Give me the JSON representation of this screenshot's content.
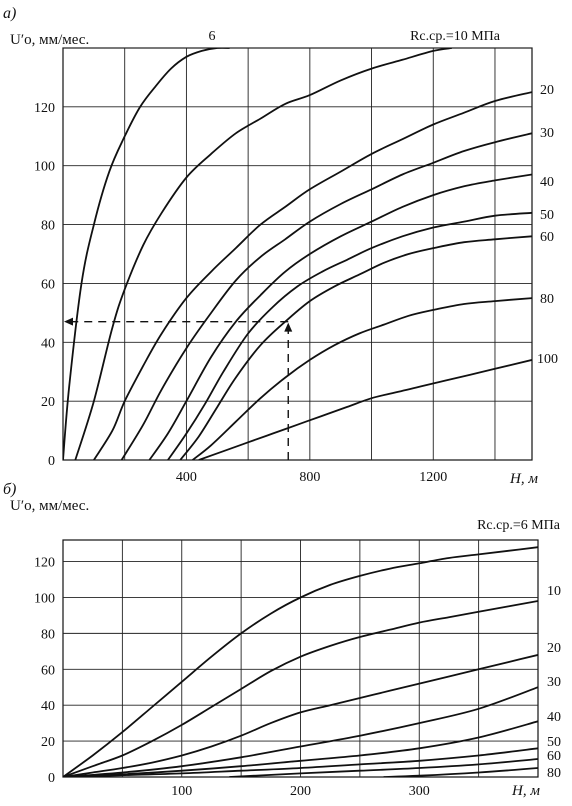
{
  "chart_data": [
    {
      "panel_label": "а)",
      "type": "line",
      "ylabel": "U′о, мм/мес.",
      "xlabel": "H, м",
      "param_label": "Rс.ср.=10 МПа",
      "xlim": [
        0,
        1520
      ],
      "ylim": [
        0,
        140
      ],
      "x_ticks": [
        "400",
        "800",
        "1200"
      ],
      "x_tick_values": [
        400,
        800,
        1200
      ],
      "y_ticks": [
        "0",
        "20",
        "40",
        "60",
        "80",
        "100",
        "120"
      ],
      "y_tick_values": [
        0,
        20,
        40,
        60,
        80,
        100,
        120
      ],
      "grid": true,
      "series": [
        {
          "name": "6",
          "x": [
            0,
            20,
            60,
            100,
            150,
            200,
            250,
            300,
            350,
            400,
            450,
            500,
            540
          ],
          "y": [
            0,
            25,
            60,
            80,
            98,
            110,
            120,
            127,
            133,
            137,
            139,
            140,
            140
          ]
        },
        {
          "name": "",
          "x": [
            40,
            100,
            160,
            200,
            260,
            320,
            400,
            480,
            560,
            640,
            720,
            800,
            900,
            1000,
            1100,
            1200,
            1260
          ],
          "y": [
            0,
            20,
            45,
            58,
            73,
            84,
            96,
            104,
            111,
            116,
            121,
            124,
            129,
            133,
            136,
            139,
            140
          ]
        },
        {
          "name": "20",
          "x": [
            100,
            160,
            200,
            260,
            320,
            400,
            480,
            560,
            640,
            720,
            800,
            900,
            1000,
            1100,
            1200,
            1300,
            1400,
            1520
          ],
          "y": [
            0,
            10,
            20,
            32,
            43,
            55,
            64,
            72,
            80,
            86,
            92,
            98,
            104,
            109,
            114,
            118,
            122,
            125
          ]
        },
        {
          "name": "30",
          "x": [
            190,
            260,
            320,
            400,
            480,
            560,
            640,
            720,
            800,
            900,
            1000,
            1100,
            1200,
            1300,
            1400,
            1520
          ],
          "y": [
            0,
            12,
            24,
            38,
            50,
            61,
            69,
            75,
            81,
            87,
            92,
            97,
            101,
            105,
            108,
            111
          ]
        },
        {
          "name": "40",
          "x": [
            280,
            340,
            400,
            480,
            560,
            640,
            720,
            800,
            900,
            1000,
            1100,
            1200,
            1300,
            1400,
            1520
          ],
          "y": [
            0,
            9,
            20,
            35,
            47,
            56,
            64,
            70,
            76,
            81,
            86,
            90,
            93,
            95,
            97
          ]
        },
        {
          "name": "50",
          "x": [
            340,
            400,
            460,
            520,
            600,
            680,
            760,
            840,
            920,
            1000,
            1100,
            1200,
            1300,
            1400,
            1520
          ],
          "y": [
            0,
            9,
            19,
            30,
            43,
            52,
            59,
            64,
            68,
            72,
            76,
            79,
            81,
            83,
            84
          ]
        },
        {
          "name": "60",
          "x": [
            380,
            440,
            500,
            560,
            640,
            720,
            800,
            880,
            960,
            1040,
            1120,
            1200,
            1300,
            1400,
            1520
          ],
          "y": [
            0,
            8,
            18,
            28,
            39,
            47,
            54,
            59,
            63,
            67,
            70,
            72,
            74,
            75,
            76
          ]
        },
        {
          "name": "80",
          "x": [
            420,
            480,
            560,
            640,
            720,
            800,
            880,
            960,
            1040,
            1120,
            1200,
            1300,
            1400,
            1520
          ],
          "y": [
            0,
            5,
            13,
            21,
            28,
            34,
            39,
            43,
            46,
            49,
            51,
            53,
            54,
            55
          ]
        },
        {
          "name": "100",
          "x": [
            440,
            520,
            600,
            680,
            760,
            840,
            920,
            1000,
            1080,
            1160,
            1240,
            1320,
            1400,
            1520
          ],
          "y": [
            0,
            3,
            6,
            9,
            12,
            15,
            18,
            21,
            23,
            25,
            27,
            29,
            31,
            34
          ]
        }
      ],
      "annotation": {
        "style": "dashed arrows",
        "point_x": 730,
        "point_y": 47,
        "arrow_from_x": 730,
        "arrow_from_y": 0,
        "arrow_to_x": 0,
        "arrow_to_y": 47
      }
    },
    {
      "panel_label": "б)",
      "type": "line",
      "ylabel": "U′о, мм/мес.",
      "xlabel": "H, м",
      "param_label": "Rс.ср.=6 МПа",
      "xlim": [
        0,
        400
      ],
      "ylim": [
        0,
        132
      ],
      "x_ticks": [
        "100",
        "200",
        "300"
      ],
      "x_tick_values": [
        100,
        200,
        300
      ],
      "y_ticks": [
        "0",
        "20",
        "40",
        "60",
        "80",
        "100",
        "120"
      ],
      "y_tick_values": [
        0,
        20,
        40,
        60,
        80,
        100,
        120
      ],
      "grid": true,
      "series": [
        {
          "name": "",
          "x": [
            0,
            25,
            50,
            75,
            100,
            125,
            150,
            175,
            200,
            225,
            250,
            275,
            300,
            325,
            350,
            375,
            400
          ],
          "y": [
            0,
            12,
            25,
            39,
            53,
            67,
            80,
            91,
            100,
            107,
            112,
            116,
            119,
            122,
            124,
            126,
            128
          ]
        },
        {
          "name": "10",
          "x": [
            0,
            25,
            50,
            75,
            100,
            125,
            150,
            175,
            200,
            225,
            250,
            275,
            300,
            325,
            350,
            375,
            400
          ],
          "y": [
            0,
            6,
            12,
            20,
            29,
            39,
            49,
            59,
            67,
            73,
            78,
            82,
            86,
            89,
            92,
            95,
            98
          ]
        },
        {
          "name": "20",
          "x": [
            0,
            25,
            50,
            75,
            100,
            125,
            150,
            175,
            200,
            225,
            250,
            275,
            300,
            325,
            350,
            375,
            400
          ],
          "y": [
            0,
            2.5,
            5,
            8,
            12,
            17,
            23,
            30,
            36,
            40,
            44,
            48,
            52,
            56,
            60,
            64,
            68
          ]
        },
        {
          "name": "30",
          "x": [
            0,
            50,
            100,
            150,
            200,
            250,
            300,
            350,
            400
          ],
          "y": [
            0,
            2.5,
            6,
            11,
            17,
            23,
            30,
            38,
            50
          ]
        },
        {
          "name": "40",
          "x": [
            0,
            50,
            100,
            150,
            200,
            250,
            300,
            350,
            400
          ],
          "y": [
            0,
            1.5,
            3.5,
            6,
            9,
            12,
            16,
            22,
            31
          ]
        },
        {
          "name": "50",
          "x": [
            0,
            50,
            100,
            150,
            200,
            250,
            300,
            350,
            400
          ],
          "y": [
            0,
            1,
            2,
            3.5,
            5,
            7,
            9,
            12,
            16
          ]
        },
        {
          "name": "60",
          "x": [
            140,
            200,
            250,
            300,
            350,
            400
          ],
          "y": [
            0,
            2,
            3.5,
            5,
            7,
            10
          ]
        },
        {
          "name": "80",
          "x": [
            270,
            300,
            350,
            400
          ],
          "y": [
            0,
            0.7,
            2.5,
            5
          ]
        }
      ]
    }
  ]
}
